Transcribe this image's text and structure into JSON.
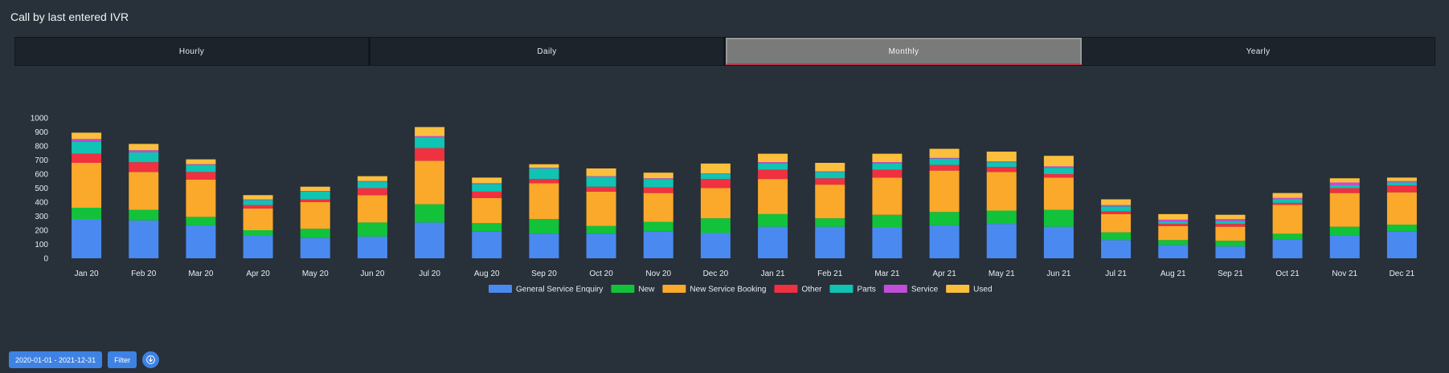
{
  "page_title": "Call by last entered IVR",
  "tabs": [
    {
      "label": "Hourly",
      "active": false
    },
    {
      "label": "Daily",
      "active": false
    },
    {
      "label": "Monthly",
      "active": true
    },
    {
      "label": "Yearly",
      "active": false
    }
  ],
  "footer": {
    "date_range_label": "2020-01-01 - 2021-12-31",
    "filter_label": "Filter",
    "download_icon": "download-icon"
  },
  "chart_data": {
    "type": "bar",
    "stacked": true,
    "title": "",
    "xlabel": "",
    "ylabel": "",
    "ylim": [
      0,
      1000
    ],
    "yticks": [
      0,
      100,
      200,
      300,
      400,
      500,
      600,
      700,
      800,
      900,
      1000
    ],
    "legend_position": "bottom",
    "categories": [
      "Jan 20",
      "Feb 20",
      "Mar 20",
      "Apr 20",
      "May 20",
      "Jun 20",
      "Jul 20",
      "Aug 20",
      "Sep 20",
      "Oct 20",
      "Nov 20",
      "Dec 20",
      "Jan 21",
      "Feb 21",
      "Mar 21",
      "Apr 21",
      "May 21",
      "Jun 21",
      "Jul 21",
      "Aug 21",
      "Sep 21",
      "Oct 21",
      "Nov 21",
      "Dec 21"
    ],
    "series": [
      {
        "name": "General Service Enquiry",
        "color": "#4a8af0",
        "values": [
          280,
          270,
          235,
          160,
          145,
          155,
          255,
          190,
          175,
          175,
          190,
          180,
          225,
          225,
          220,
          235,
          245,
          225,
          130,
          95,
          85,
          135,
          165,
          190
        ]
      },
      {
        "name": "New",
        "color": "#12c23b",
        "values": [
          80,
          75,
          60,
          40,
          65,
          100,
          130,
          60,
          105,
          55,
          70,
          105,
          90,
          60,
          90,
          95,
          95,
          120,
          55,
          35,
          40,
          40,
          60,
          50
        ]
      },
      {
        "name": "New Service Booking",
        "color": "#faa92b",
        "values": [
          320,
          270,
          265,
          155,
          190,
          195,
          310,
          180,
          255,
          245,
          205,
          215,
          250,
          240,
          265,
          295,
          275,
          230,
          130,
          100,
          100,
          205,
          240,
          230
        ]
      },
      {
        "name": "Other",
        "color": "#ef3140",
        "values": [
          65,
          70,
          55,
          25,
          20,
          50,
          90,
          45,
          30,
          35,
          40,
          65,
          65,
          45,
          55,
          40,
          35,
          25,
          20,
          15,
          20,
          15,
          35,
          50
        ]
      },
      {
        "name": "Parts",
        "color": "#0fc4b2",
        "values": [
          85,
          70,
          50,
          35,
          55,
          45,
          75,
          55,
          75,
          70,
          60,
          35,
          45,
          45,
          45,
          45,
          35,
          45,
          35,
          15,
          20,
          25,
          20,
          20
        ]
      },
      {
        "name": "Service",
        "color": "#c04ed6",
        "values": [
          20,
          15,
          5,
          5,
          5,
          5,
          10,
          5,
          5,
          5,
          5,
          5,
          10,
          5,
          10,
          5,
          5,
          10,
          10,
          15,
          15,
          10,
          20,
          10
        ]
      },
      {
        "name": "Used",
        "color": "#fbbf3d",
        "values": [
          45,
          45,
          35,
          30,
          30,
          35,
          65,
          40,
          25,
          55,
          40,
          70,
          60,
          60,
          60,
          65,
          70,
          75,
          40,
          40,
          30,
          35,
          30,
          25
        ]
      }
    ]
  }
}
